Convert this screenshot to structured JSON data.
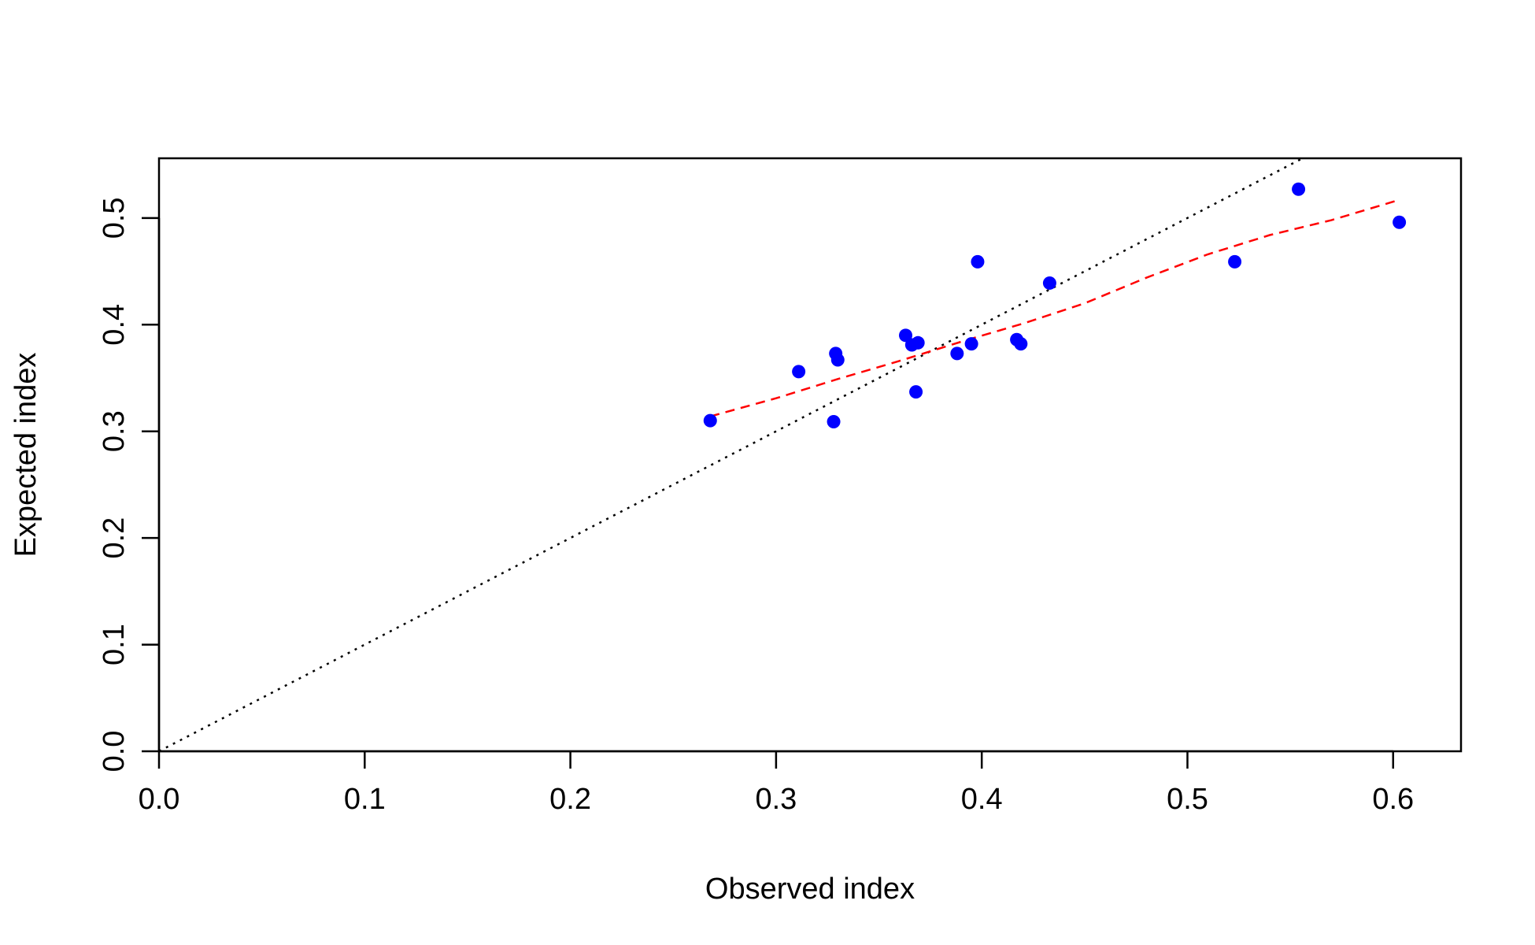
{
  "chart_data": {
    "type": "scatter",
    "title": "",
    "xlabel": "Observed index",
    "ylabel": "Expected index",
    "xlim": [
      0,
      0.633
    ],
    "ylim": [
      0,
      0.556
    ],
    "x_ticks": [
      0.0,
      0.1,
      0.2,
      0.3,
      0.4,
      0.5,
      0.6
    ],
    "x_tick_labels": [
      "0.0",
      "0.1",
      "0.2",
      "0.3",
      "0.4",
      "0.5",
      "0.6"
    ],
    "y_ticks": [
      0.0,
      0.1,
      0.2,
      0.3,
      0.4,
      0.5
    ],
    "y_tick_labels": [
      "0.0",
      "0.1",
      "0.2",
      "0.3",
      "0.4",
      "0.5"
    ],
    "grid": false,
    "legend": "none",
    "points": {
      "color": "#0000ff",
      "x": [
        0.268,
        0.311,
        0.328,
        0.329,
        0.33,
        0.363,
        0.366,
        0.368,
        0.369,
        0.388,
        0.395,
        0.398,
        0.417,
        0.419,
        0.433,
        0.523,
        0.554,
        0.603
      ],
      "y": [
        0.31,
        0.356,
        0.309,
        0.373,
        0.367,
        0.39,
        0.381,
        0.337,
        0.383,
        0.373,
        0.382,
        0.459,
        0.386,
        0.382,
        0.439,
        0.459,
        0.527,
        0.496
      ]
    },
    "reference_line": {
      "style": "dotted",
      "color": "#000000",
      "x": [
        0,
        0.556
      ],
      "y": [
        0,
        0.556
      ]
    },
    "fit_line": {
      "style": "dashed",
      "color": "#ff0000",
      "x": [
        0.268,
        0.3,
        0.33,
        0.36,
        0.39,
        0.42,
        0.45,
        0.48,
        0.51,
        0.54,
        0.57,
        0.603
      ],
      "y": [
        0.314,
        0.331,
        0.349,
        0.366,
        0.384,
        0.401,
        0.42,
        0.444,
        0.466,
        0.484,
        0.498,
        0.517
      ]
    }
  }
}
